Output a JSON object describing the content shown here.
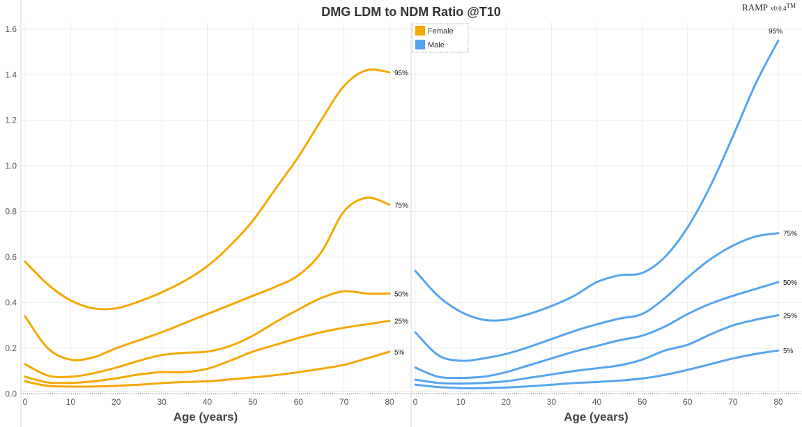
{
  "brand": {
    "name": "RAMP",
    "version": "v0.0.4",
    "mark": "TM"
  },
  "chart_data": {
    "type": "line",
    "title": "DMG LDM to NDM Ratio @T10",
    "xlabel": "Age (years)",
    "ylabel": "",
    "xlim": [
      0,
      80
    ],
    "ylim": [
      -0.06,
      1.63
    ],
    "xticks": [
      "0",
      "10",
      "20",
      "30",
      "40",
      "50",
      "60",
      "70",
      "80"
    ],
    "yticks": [
      "0.0",
      "0.2",
      "0.4",
      "0.6",
      "0.8",
      "1.0",
      "1.2",
      "1.4",
      "1.6"
    ],
    "grid": true,
    "legend_position": "top-left of right panel",
    "legend": [
      {
        "name": "Female",
        "color": "#f5a800"
      },
      {
        "name": "Male",
        "color": "#55a4f0"
      }
    ],
    "panels": [
      {
        "name": "Female",
        "color": "#f5a800",
        "x": [
          0,
          5,
          10,
          15,
          20,
          25,
          30,
          35,
          40,
          45,
          50,
          55,
          60,
          65,
          70,
          75,
          80
        ],
        "series": [
          {
            "label": "95%",
            "values": [
              0.58,
              0.48,
              0.41,
              0.375,
              0.375,
              0.405,
              0.445,
              0.495,
              0.56,
              0.65,
              0.76,
              0.9,
              1.04,
              1.2,
              1.35,
              1.42,
              1.41
            ]
          },
          {
            "label": "75%",
            "values": [
              0.34,
              0.2,
              0.15,
              0.16,
              0.2,
              0.235,
              0.27,
              0.31,
              0.35,
              0.39,
              0.43,
              0.47,
              0.52,
              0.62,
              0.8,
              0.86,
              0.83
            ]
          },
          {
            "label": "50%",
            "values": [
              0.13,
              0.08,
              0.075,
              0.09,
              0.115,
              0.145,
              0.17,
              0.18,
              0.185,
              0.21,
              0.255,
              0.315,
              0.37,
              0.42,
              0.45,
              0.44,
              0.44
            ]
          },
          {
            "label": "25%",
            "values": [
              0.075,
              0.05,
              0.048,
              0.055,
              0.068,
              0.085,
              0.095,
              0.095,
              0.11,
              0.145,
              0.185,
              0.215,
              0.245,
              0.27,
              0.29,
              0.305,
              0.32
            ]
          },
          {
            "label": "5%",
            "values": [
              0.055,
              0.035,
              0.032,
              0.032,
              0.035,
              0.04,
              0.047,
              0.052,
              0.055,
              0.063,
              0.072,
              0.082,
              0.095,
              0.11,
              0.127,
              0.155,
              0.185
            ]
          }
        ]
      },
      {
        "name": "Male",
        "color": "#55a4f0",
        "x": [
          0,
          5,
          10,
          15,
          20,
          25,
          30,
          35,
          40,
          45,
          50,
          55,
          60,
          65,
          70,
          75,
          80
        ],
        "series": [
          {
            "label": "95%",
            "values": [
              0.54,
              0.43,
              0.36,
              0.325,
              0.325,
              0.35,
              0.385,
              0.43,
              0.49,
              0.52,
              0.53,
              0.6,
              0.73,
              0.91,
              1.13,
              1.36,
              1.55
            ]
          },
          {
            "label": "75%",
            "values": [
              0.27,
              0.17,
              0.145,
              0.155,
              0.175,
              0.205,
              0.24,
              0.275,
              0.305,
              0.33,
              0.35,
              0.42,
              0.51,
              0.59,
              0.65,
              0.69,
              0.705
            ]
          },
          {
            "label": "50%",
            "values": [
              0.115,
              0.075,
              0.07,
              0.075,
              0.095,
              0.125,
              0.155,
              0.185,
              0.21,
              0.235,
              0.255,
              0.295,
              0.35,
              0.395,
              0.43,
              0.46,
              0.49
            ]
          },
          {
            "label": "25%",
            "values": [
              0.062,
              0.048,
              0.045,
              0.048,
              0.055,
              0.07,
              0.085,
              0.1,
              0.112,
              0.125,
              0.15,
              0.19,
              0.215,
              0.26,
              0.3,
              0.325,
              0.345
            ]
          },
          {
            "label": "5%",
            "values": [
              0.04,
              0.03,
              0.025,
              0.025,
              0.028,
              0.033,
              0.04,
              0.047,
              0.052,
              0.058,
              0.067,
              0.083,
              0.105,
              0.13,
              0.155,
              0.175,
              0.19
            ]
          }
        ]
      }
    ]
  }
}
